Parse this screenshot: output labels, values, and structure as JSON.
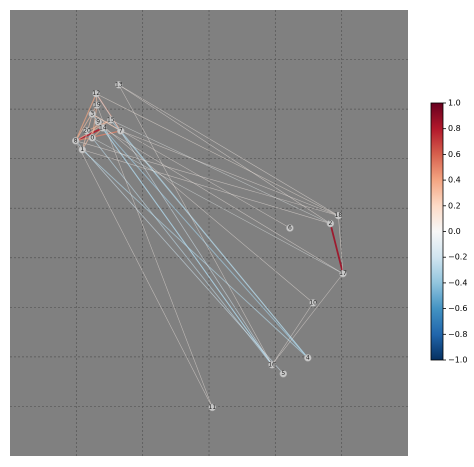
{
  "chart_data": {
    "type": "network",
    "xlim": [
      0,
      6
    ],
    "ylim": [
      0,
      9
    ],
    "invert_y": true,
    "grid": true,
    "nodes": [
      {
        "label": "0",
        "x": 1.24,
        "y": 2.58
      },
      {
        "label": "1",
        "x": 1.09,
        "y": 2.82
      },
      {
        "label": "2",
        "x": 4.83,
        "y": 4.31
      },
      {
        "label": "3",
        "x": 1.24,
        "y": 2.1
      },
      {
        "label": "4",
        "x": 4.49,
        "y": 7.02
      },
      {
        "label": "5",
        "x": 4.12,
        "y": 7.34
      },
      {
        "label": "6",
        "x": 4.22,
        "y": 4.4
      },
      {
        "label": "7",
        "x": 1.67,
        "y": 2.44
      },
      {
        "label": "8",
        "x": 0.99,
        "y": 2.64
      },
      {
        "label": "9",
        "x": 1.33,
        "y": 2.26
      },
      {
        "label": "10",
        "x": 4.57,
        "y": 5.91
      },
      {
        "label": "11",
        "x": 3.05,
        "y": 8.02
      },
      {
        "label": "12",
        "x": 1.3,
        "y": 1.69
      },
      {
        "label": "13",
        "x": 1.64,
        "y": 1.51
      },
      {
        "label": "14",
        "x": 1.4,
        "y": 2.38
      },
      {
        "label": "15",
        "x": 1.52,
        "y": 2.22
      },
      {
        "label": "16",
        "x": 3.95,
        "y": 7.16
      },
      {
        "label": "17",
        "x": 5.02,
        "y": 5.32
      },
      {
        "label": "18",
        "x": 4.95,
        "y": 4.15
      },
      {
        "label": "19",
        "x": 1.31,
        "y": 1.92
      },
      {
        "label": "20",
        "x": 1.16,
        "y": 2.44
      }
    ],
    "edges": [
      {
        "source": 2,
        "target": 17,
        "value": 0.85
      },
      {
        "source": 8,
        "target": 14,
        "value": 0.8
      },
      {
        "source": 8,
        "target": 7,
        "value": 0.5
      },
      {
        "source": 12,
        "target": 8,
        "value": 0.4
      },
      {
        "source": 12,
        "target": 7,
        "value": 0.45
      },
      {
        "source": 19,
        "target": 0,
        "value": 0.35
      },
      {
        "source": 3,
        "target": 7,
        "value": 0.3
      },
      {
        "source": 9,
        "target": 1,
        "value": 0.3
      },
      {
        "source": 20,
        "target": 15,
        "value": 0.35
      },
      {
        "source": 0,
        "target": 14,
        "value": 0.4
      },
      {
        "source": 12,
        "target": 19,
        "value": 0.3
      },
      {
        "source": 19,
        "target": 8,
        "value": 0.3
      },
      {
        "source": 3,
        "target": 1,
        "value": 0.25
      },
      {
        "source": 15,
        "target": 8,
        "value": 0.3
      },
      {
        "source": 7,
        "target": 4,
        "value": -0.3
      },
      {
        "source": 14,
        "target": 4,
        "value": -0.35
      },
      {
        "source": 15,
        "target": 4,
        "value": -0.3
      },
      {
        "source": 9,
        "target": 16,
        "value": -0.35
      },
      {
        "source": 3,
        "target": 16,
        "value": -0.3
      },
      {
        "source": 1,
        "target": 4,
        "value": -0.3
      },
      {
        "source": 0,
        "target": 16,
        "value": -0.25
      },
      {
        "source": 8,
        "target": 5,
        "value": -0.2
      },
      {
        "source": 12,
        "target": 16,
        "value": -0.2
      },
      {
        "source": 13,
        "target": 18,
        "value": 0.05
      },
      {
        "source": 13,
        "target": 2,
        "value": 0.05
      },
      {
        "source": 12,
        "target": 18,
        "value": 0.08
      },
      {
        "source": 15,
        "target": 2,
        "value": -0.05
      },
      {
        "source": 7,
        "target": 18,
        "value": 0.05
      },
      {
        "source": 8,
        "target": 18,
        "value": 0.05
      },
      {
        "source": 1,
        "target": 2,
        "value": 0.05
      },
      {
        "source": 14,
        "target": 17,
        "value": 0.05
      },
      {
        "source": 0,
        "target": 17,
        "value": -0.05
      },
      {
        "source": 13,
        "target": 16,
        "value": 0.05
      },
      {
        "source": 8,
        "target": 11,
        "value": 0.05
      },
      {
        "source": 19,
        "target": 11,
        "value": 0.05
      },
      {
        "source": 17,
        "target": 16,
        "value": 0.05
      },
      {
        "source": 10,
        "target": 16,
        "value": 0.05
      },
      {
        "source": 18,
        "target": 17,
        "value": 0.08
      },
      {
        "source": 3,
        "target": 6,
        "value": 0.05
      },
      {
        "source": 9,
        "target": 10,
        "value": 0.05
      }
    ],
    "colormap": [
      "#053061",
      "#2166ac",
      "#4393c3",
      "#92c5de",
      "#d1e5f0",
      "#f7f7f7",
      "#fddbc7",
      "#f4a582",
      "#d6604d",
      "#b2182b",
      "#67001f"
    ],
    "colorbar": {
      "lim": [
        -1,
        1
      ],
      "ticks": [
        {
          "value": 1,
          "label": "1.0"
        },
        {
          "value": 0.8,
          "label": "0.8"
        },
        {
          "value": 0.6,
          "label": "0.6"
        },
        {
          "value": 0.4,
          "label": "0.4"
        },
        {
          "value": 0.2,
          "label": "0.2"
        },
        {
          "value": 0,
          "label": "0.0"
        },
        {
          "value": -0.2,
          "label": "−0.2"
        },
        {
          "value": -0.4,
          "label": "−0.4"
        },
        {
          "value": -0.6,
          "label": "−0.6"
        },
        {
          "value": -0.8,
          "label": "−0.8"
        },
        {
          "value": -1,
          "label": "−1.0"
        }
      ]
    }
  }
}
